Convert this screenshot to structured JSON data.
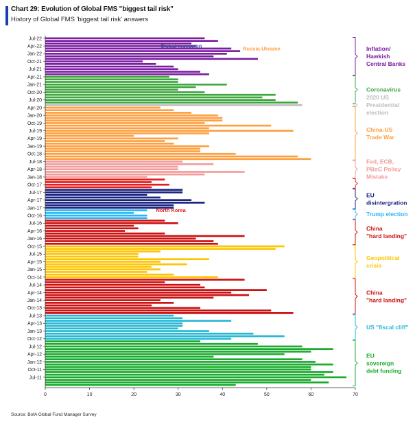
{
  "title": "Chart 29: Evolution of Global FMS \"biggest tail risk\"",
  "subtitle": "History of Global FMS 'biggest tail risk' answers",
  "source": "Source: BofA Global Fund Manager Survey",
  "chart_data": {
    "type": "bar",
    "orientation": "horizontal",
    "xlim": [
      0,
      70
    ],
    "xticks": [
      0,
      10,
      20,
      30,
      40,
      50,
      60,
      70
    ],
    "ytick_labels": [
      "Jul-22",
      "Apr-22",
      "Jan-22",
      "Oct-21",
      "Jul-21",
      "Apr-21",
      "Jan-21",
      "Oct-20",
      "Jul-20",
      "Apr-20",
      "Jan-20",
      "Oct-19",
      "Jul-19",
      "Apr-19",
      "Jan-19",
      "Oct-18",
      "Jul-18",
      "Apr-18",
      "Jan-18",
      "Oct-17",
      "Jul-17",
      "Apr-17",
      "Jan-17",
      "Oct-16",
      "Jul-16",
      "Apr-16",
      "Jan-16",
      "Oct-15",
      "Jul-15",
      "Apr-15",
      "Jan-15",
      "Oct-14",
      "Jul-14",
      "Apr-14",
      "Jan-14",
      "Oct-13",
      "Jul-13",
      "Apr-13",
      "Jan-13",
      "Oct-12",
      "Jul-12",
      "Apr-12",
      "Jan-12",
      "Oct-11",
      "Jul-11"
    ],
    "series": [
      {
        "name": "Inflation/ Hawkish Central Banks",
        "color": "#7b1fa2",
        "values": [
          36,
          39,
          33,
          34,
          42,
          44,
          41,
          38,
          48,
          22,
          25,
          29,
          30,
          35,
          37
        ]
      },
      {
        "name": "Coronavirus",
        "color": "#3da63d",
        "values": [
          28,
          30,
          30,
          41,
          34,
          30,
          36,
          52,
          49,
          52,
          57
        ]
      },
      {
        "name": "2020 US Presidential election",
        "color": "#bdbdbd",
        "values": [
          58
        ]
      },
      {
        "name": "China-US Trade War",
        "color": "#ff9f40",
        "values": [
          26,
          29,
          33,
          39,
          40,
          40,
          36,
          51,
          37,
          56,
          37,
          20,
          30,
          27,
          29,
          37,
          35,
          35,
          43,
          57,
          60
        ]
      },
      {
        "name": "Fed, ECB, PBoC Policy Mistake",
        "color": "#f49a9a",
        "values": [
          31,
          38,
          30,
          30,
          45,
          36,
          23
        ]
      },
      {
        "name": "North Korea",
        "color": "#e41a1c",
        "values": [
          27,
          24,
          28,
          24
        ]
      },
      {
        "name": "EU disintergration",
        "color": "#1a237e",
        "values": [
          31,
          31,
          23,
          26,
          33,
          36,
          29,
          29
        ]
      },
      {
        "name": "Trump election",
        "color": "#29b6f6",
        "values": [
          23,
          20,
          23,
          23
        ]
      },
      {
        "name": "China \"hard landing\"",
        "color": "#cc1010",
        "values": [
          27,
          30,
          20,
          21,
          18,
          27,
          45,
          34,
          38,
          39
        ]
      },
      {
        "name": "Geopolitical crisis",
        "color": "#ffc400",
        "values": [
          54,
          52,
          26,
          21,
          21,
          37,
          26,
          32,
          24,
          26,
          23,
          29,
          39
        ]
      },
      {
        "name": "China \"hard landing\"",
        "color": "#cc1010",
        "values": [
          45,
          27,
          35,
          36,
          50,
          42,
          46,
          38,
          26,
          29,
          24,
          35,
          51,
          56
        ]
      },
      {
        "name": "US \"fiscal cliff\"",
        "color": "#26b8d4",
        "values": [
          29,
          31,
          42,
          31,
          31,
          30,
          37,
          47,
          54,
          42
        ]
      },
      {
        "name": "EU sovereign debt funding",
        "color": "#1aab2e",
        "values": [
          35,
          48,
          58,
          65,
          60,
          54,
          38,
          58,
          61,
          65,
          60,
          60,
          65,
          63,
          68,
          60,
          64,
          43
        ]
      }
    ],
    "annotations": [
      {
        "text": "Global recession",
        "value": 26
      },
      {
        "text": "Russia-Ukraine",
        "value": 44
      },
      {
        "text": "North Korea",
        "value": 25
      }
    ]
  }
}
